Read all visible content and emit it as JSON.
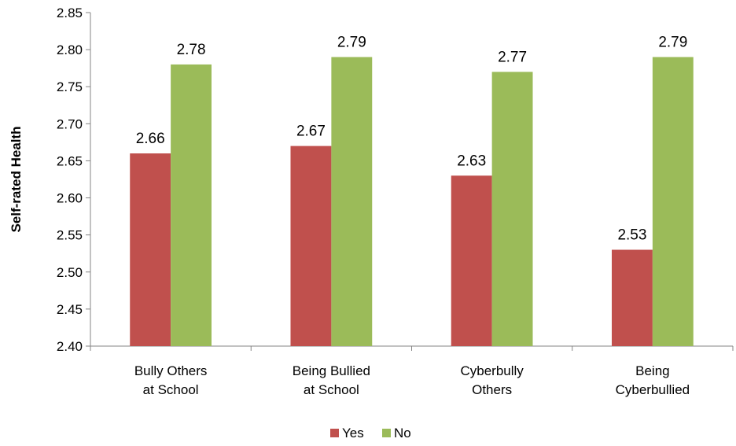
{
  "chart_data": {
    "type": "bar",
    "title": "",
    "xlabel": "",
    "ylabel": "Self-rated Health",
    "ylim": [
      2.4,
      2.85
    ],
    "ytick_step": 0.05,
    "yticks": [
      "2.40",
      "2.45",
      "2.50",
      "2.55",
      "2.60",
      "2.65",
      "2.70",
      "2.75",
      "2.80",
      "2.85"
    ],
    "grid": false,
    "legend_position": "bottom",
    "categories": [
      [
        "Bully Others",
        "at School"
      ],
      [
        "Being Bullied",
        "at School"
      ],
      [
        "Cyberbully",
        "Others"
      ],
      [
        "Being",
        "Cyberbullied"
      ]
    ],
    "series": [
      {
        "name": "Yes",
        "color": "#c0504d",
        "values": [
          2.66,
          2.67,
          2.63,
          2.53
        ],
        "labels": [
          "2.66",
          "2.67",
          "2.63",
          "2.53"
        ]
      },
      {
        "name": "No",
        "color": "#9bbb59",
        "values": [
          2.78,
          2.79,
          2.77,
          2.79
        ],
        "labels": [
          "2.78",
          "2.79",
          "2.77",
          "2.79"
        ]
      }
    ]
  }
}
